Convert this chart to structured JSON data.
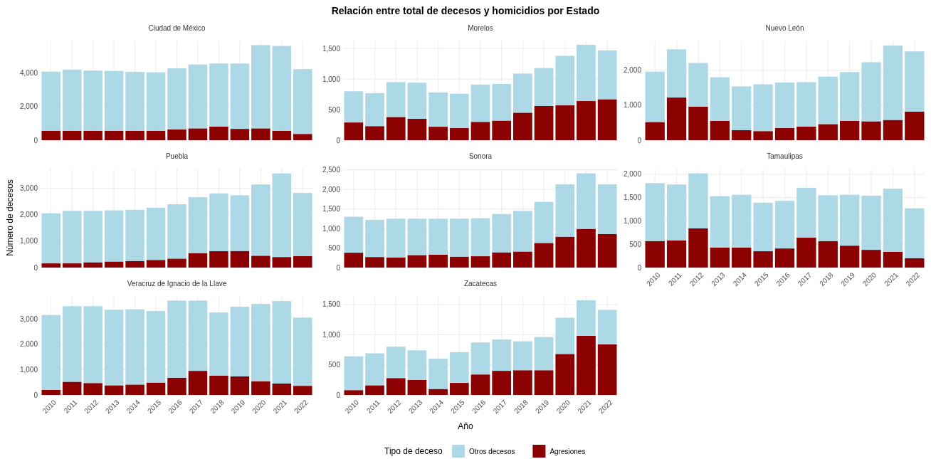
{
  "chart_data": [
    {
      "type": "bar",
      "stacked": true,
      "title": "Ciudad de México",
      "annotations": [
        "Relación entre total de decesos y homicidios por Estado"
      ],
      "legend": "bottom",
      "legend_title": "Tipo de deceso",
      "grid": true,
      "tick_labels": "y",
      "categories": [
        "2010",
        "2011",
        "2012",
        "2013",
        "2014",
        "2015",
        "2016",
        "2017",
        "2018",
        "2019",
        "2020",
        "2021",
        "2022"
      ],
      "ylim": [
        0,
        5900
      ],
      "yticks": [
        {
          "value": 0,
          "label": "0"
        },
        {
          "value": 2000,
          "label": "2,000"
        },
        {
          "value": 4000,
          "label": "4,000"
        }
      ],
      "series": [
        {
          "name": "Agresiones",
          "color": "#8b0000",
          "values": [
            560,
            560,
            560,
            560,
            560,
            560,
            640,
            700,
            810,
            670,
            700,
            560,
            370
          ]
        },
        {
          "name": "Otros decesos",
          "color": "#add8e6",
          "values": [
            3500,
            3620,
            3560,
            3540,
            3480,
            3450,
            3620,
            3780,
            3730,
            3870,
            4930,
            5020,
            3840
          ]
        }
      ]
    },
    {
      "type": "bar",
      "stacked": true,
      "title": "Morelos",
      "grid": true,
      "tick_labels": "y",
      "categories": [
        "2010",
        "2011",
        "2012",
        "2013",
        "2014",
        "2015",
        "2016",
        "2017",
        "2018",
        "2019",
        "2020",
        "2021",
        "2022"
      ],
      "ylim": [
        0,
        1630
      ],
      "yticks": [
        {
          "value": 0,
          "label": "0"
        },
        {
          "value": 500,
          "label": "500"
        },
        {
          "value": 1000,
          "label": "1,000"
        },
        {
          "value": 1500,
          "label": "1,500"
        }
      ],
      "series": [
        {
          "color": "#8b0000",
          "values": [
            290,
            230,
            380,
            350,
            220,
            200,
            300,
            320,
            450,
            560,
            570,
            640,
            670
          ]
        },
        {
          "color": "#add8e6",
          "values": [
            510,
            540,
            570,
            590,
            560,
            560,
            610,
            600,
            640,
            620,
            810,
            920,
            800
          ]
        }
      ]
    },
    {
      "type": "bar",
      "stacked": true,
      "title": "Nuevo León",
      "grid": true,
      "tick_labels": "y",
      "categories": [
        "2010",
        "2011",
        "2012",
        "2013",
        "2014",
        "2015",
        "2016",
        "2017",
        "2018",
        "2019",
        "2020",
        "2021",
        "2022"
      ],
      "ylim": [
        0,
        2850
      ],
      "yticks": [
        {
          "value": 0,
          "label": "0"
        },
        {
          "value": 1000,
          "label": "1,000"
        },
        {
          "value": 2000,
          "label": "2,000"
        }
      ],
      "series": [
        {
          "color": "#8b0000",
          "values": [
            520,
            1220,
            960,
            550,
            290,
            260,
            350,
            390,
            460,
            550,
            540,
            580,
            820
          ]
        },
        {
          "color": "#add8e6",
          "values": [
            1440,
            1380,
            1250,
            1250,
            1250,
            1340,
            1300,
            1270,
            1360,
            1400,
            1690,
            2130,
            1720
          ]
        }
      ]
    },
    {
      "type": "bar",
      "stacked": true,
      "title": "Puebla",
      "ylabel": "Número de decesos",
      "grid": true,
      "tick_labels": "y",
      "categories": [
        "2010",
        "2011",
        "2012",
        "2013",
        "2014",
        "2015",
        "2016",
        "2017",
        "2018",
        "2019",
        "2020",
        "2021",
        "2022"
      ],
      "ylim": [
        0,
        3750
      ],
      "yticks": [
        {
          "value": 0,
          "label": "0"
        },
        {
          "value": 1000,
          "label": "1,000"
        },
        {
          "value": 2000,
          "label": "2,000"
        },
        {
          "value": 3000,
          "label": "3,000"
        }
      ],
      "series": [
        {
          "color": "#8b0000",
          "values": [
            160,
            160,
            200,
            230,
            250,
            290,
            340,
            550,
            620,
            630,
            450,
            400,
            440
          ]
        },
        {
          "color": "#add8e6",
          "values": [
            1900,
            1990,
            1950,
            1940,
            1940,
            1980,
            2060,
            2120,
            2190,
            2110,
            2700,
            3170,
            2390
          ]
        }
      ]
    },
    {
      "type": "bar",
      "stacked": true,
      "title": "Sonora",
      "grid": true,
      "tick_labels": "y",
      "categories": [
        "2010",
        "2011",
        "2012",
        "2013",
        "2014",
        "2015",
        "2016",
        "2017",
        "2018",
        "2019",
        "2020",
        "2021",
        "2022"
      ],
      "ylim": [
        0,
        2530
      ],
      "yticks": [
        {
          "value": 0,
          "label": "0"
        },
        {
          "value": 500,
          "label": "500"
        },
        {
          "value": 1000,
          "label": "1,000"
        },
        {
          "value": 1500,
          "label": "1,500"
        },
        {
          "value": 2000,
          "label": "2,000"
        },
        {
          "value": 2500,
          "label": "2,500"
        }
      ],
      "series": [
        {
          "color": "#8b0000",
          "values": [
            380,
            270,
            260,
            320,
            330,
            280,
            290,
            390,
            410,
            630,
            790,
            990,
            860
          ]
        },
        {
          "color": "#add8e6",
          "values": [
            920,
            950,
            990,
            930,
            920,
            970,
            970,
            980,
            1040,
            1050,
            1340,
            1420,
            1270
          ]
        }
      ]
    },
    {
      "type": "bar",
      "stacked": true,
      "title": "Tamaulipas",
      "grid": true,
      "categories": [
        "2010",
        "2011",
        "2012",
        "2013",
        "2014",
        "2015",
        "2016",
        "2017",
        "2018",
        "2019",
        "2020",
        "2021",
        "2022"
      ],
      "ylim": [
        0,
        2120
      ],
      "yticks": [
        {
          "value": 0,
          "label": "0"
        },
        {
          "value": 500,
          "label": "500"
        },
        {
          "value": 1000,
          "label": "1,000"
        },
        {
          "value": 1500,
          "label": "1,500"
        },
        {
          "value": 2000,
          "label": "2,000"
        }
      ],
      "series": [
        {
          "color": "#8b0000",
          "values": [
            570,
            580,
            840,
            430,
            430,
            350,
            410,
            640,
            570,
            470,
            380,
            340,
            200
          ]
        },
        {
          "color": "#add8e6",
          "values": [
            1240,
            1200,
            1180,
            1100,
            1130,
            1040,
            1020,
            1070,
            980,
            1090,
            1160,
            1350,
            1070
          ]
        }
      ]
    },
    {
      "type": "bar",
      "stacked": true,
      "title": "Veracruz de Ignacio de la Llave",
      "grid": true,
      "categories": [
        "2010",
        "2011",
        "2012",
        "2013",
        "2014",
        "2015",
        "2016",
        "2017",
        "2018",
        "2019",
        "2020",
        "2021",
        "2022"
      ],
      "ylim": [
        0,
        3900
      ],
      "yticks": [
        {
          "value": 0,
          "label": "0"
        },
        {
          "value": 1000,
          "label": "1,000"
        },
        {
          "value": 2000,
          "label": "2,000"
        },
        {
          "value": 3000,
          "label": "3,000"
        }
      ],
      "series": [
        {
          "color": "#8b0000",
          "values": [
            200,
            520,
            470,
            380,
            410,
            490,
            680,
            950,
            760,
            730,
            540,
            450,
            360
          ]
        },
        {
          "color": "#add8e6",
          "values": [
            2950,
            2980,
            3030,
            2980,
            2970,
            2820,
            3040,
            2770,
            2490,
            2750,
            3050,
            3250,
            2690
          ]
        }
      ]
    },
    {
      "type": "bar",
      "stacked": true,
      "title": "Zacatecas",
      "xlabel": "Año",
      "grid": true,
      "categories": [
        "2010",
        "2011",
        "2012",
        "2013",
        "2014",
        "2015",
        "2016",
        "2017",
        "2018",
        "2019",
        "2020",
        "2021",
        "2022"
      ],
      "ylim": [
        0,
        1640
      ],
      "yticks": [
        {
          "value": 0,
          "label": "0"
        },
        {
          "value": 500,
          "label": "500"
        },
        {
          "value": 1000,
          "label": "1,000"
        },
        {
          "value": 1500,
          "label": "1,500"
        }
      ],
      "series": [
        {
          "color": "#8b0000",
          "values": [
            80,
            160,
            280,
            250,
            100,
            200,
            340,
            400,
            410,
            410,
            680,
            980,
            840
          ]
        },
        {
          "color": "#add8e6",
          "values": [
            560,
            530,
            520,
            490,
            500,
            510,
            530,
            520,
            480,
            550,
            600,
            590,
            570
          ]
        }
      ]
    }
  ]
}
